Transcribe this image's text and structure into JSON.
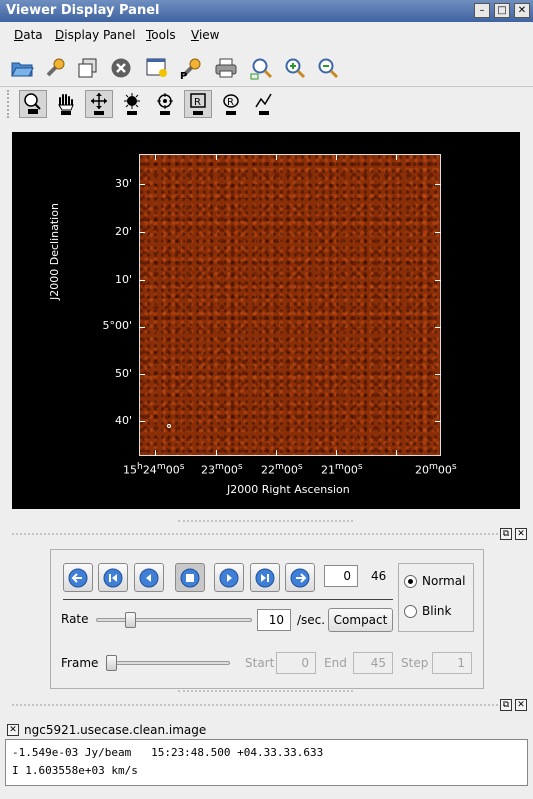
{
  "window": {
    "title": "Viewer Display Panel",
    "controls": [
      "–",
      "□",
      "✕"
    ]
  },
  "menu": {
    "items": [
      {
        "label": "Data"
      },
      {
        "label": "Display Panel"
      },
      {
        "label": "Tools"
      },
      {
        "label": "View"
      }
    ]
  },
  "image_plot": {
    "xlabel": "J2000 Right Ascension",
    "ylabel": "J2000 Declination",
    "x_ticks": [
      {
        "h": "15",
        "m": "24",
        "s": "00"
      },
      {
        "h": "",
        "m": "23",
        "s": "00"
      },
      {
        "h": "",
        "m": "22",
        "s": "00"
      },
      {
        "h": "",
        "m": "21",
        "s": "00"
      },
      {
        "h": "",
        "m": "20",
        "s": "00"
      }
    ],
    "y_ticks": [
      "30'",
      "20'",
      "10'",
      "5°00'",
      "50'",
      "40'"
    ],
    "colors": {
      "image": "#8a2e08",
      "background": "#000000"
    }
  },
  "animator": {
    "frame_value": "0",
    "frame_total": "46",
    "rate_label": "Rate",
    "rate_value": "10",
    "rate_unit": "/sec.",
    "compact_label": "Compact",
    "frame_label": "Frame",
    "start_label": "Start",
    "start_value": "0",
    "end_label": "End",
    "end_value": "45",
    "step_label": "Step",
    "step_value": "1",
    "mode_normal": "Normal",
    "mode_blink": "Blink",
    "selected_mode": "Normal",
    "rate_slider_fraction": 0.2,
    "frame_slider_fraction": 0.0
  },
  "status": {
    "title": "ngc5921.usecase.clean.image",
    "line1": "-1.549e-03 Jy/beam   15:23:48.500 +04.33.33.633",
    "line2": "I 1.603558e+03 km/s"
  }
}
